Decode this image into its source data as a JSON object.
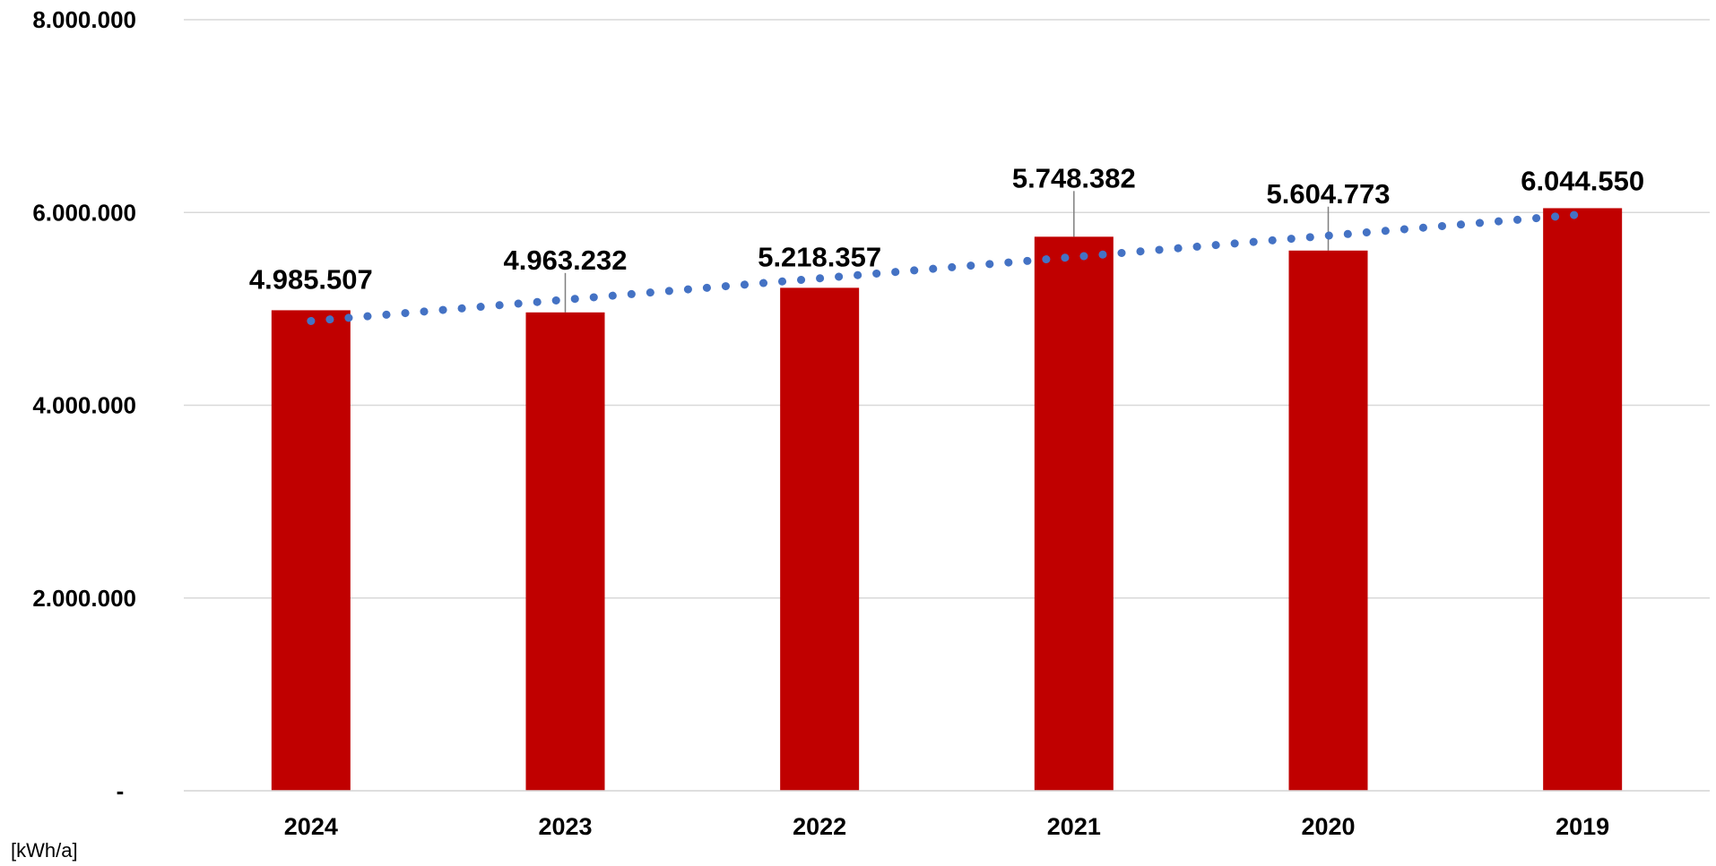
{
  "chart_data": {
    "type": "bar",
    "categories": [
      "2024",
      "2023",
      "2022",
      "2021",
      "2020",
      "2019"
    ],
    "series": [
      {
        "values": [
          4985507,
          4963232,
          5218357,
          5748382,
          5604773,
          6044550
        ]
      }
    ],
    "data_labels": [
      "4.985.507",
      "4.963.232",
      "5.218.357",
      "5.748.382",
      "5.604.773",
      "6.044.550"
    ],
    "trendline": {
      "type": "linear",
      "style": "dotted"
    },
    "ylim": [
      0,
      8000000
    ],
    "yticks": [
      0,
      2000000,
      4000000,
      6000000,
      8000000
    ],
    "ytick_labels": [
      "-",
      "2.000.000",
      "4.000.000",
      "6.000.000",
      "8.000.000"
    ],
    "unit_label": "[kWh/a]",
    "grid": true,
    "legend": false,
    "colors": {
      "bar": "#c00000",
      "trend": "#4472c4",
      "grid": "#d9d9d9",
      "leader": "#7f7f7f"
    }
  }
}
